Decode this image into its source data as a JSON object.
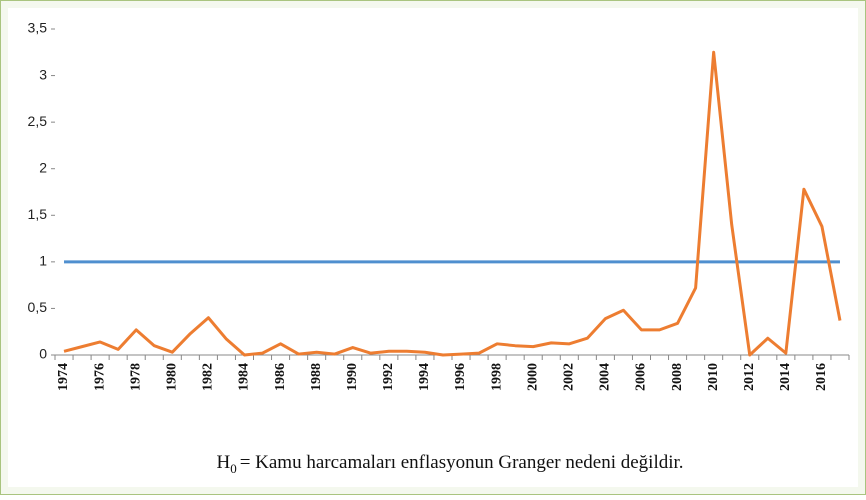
{
  "chart_data": {
    "type": "line",
    "categories": [
      "1974",
      null,
      "1976",
      null,
      "1978",
      null,
      "1980",
      null,
      "1982",
      null,
      "1984",
      null,
      "1986",
      null,
      "1988",
      null,
      "1990",
      null,
      "1992",
      null,
      "1994",
      null,
      "1996",
      null,
      "1998",
      null,
      "2000",
      null,
      "2002",
      null,
      "2004",
      null,
      "2006",
      null,
      "2008",
      null,
      "2010",
      null,
      "2012",
      null,
      "2014",
      null,
      "2016",
      null
    ],
    "series": [
      {
        "color": "#4f8fcf",
        "values": [
          1,
          1,
          1,
          1,
          1,
          1,
          1,
          1,
          1,
          1,
          1,
          1,
          1,
          1,
          1,
          1,
          1,
          1,
          1,
          1,
          1,
          1,
          1,
          1,
          1,
          1,
          1,
          1,
          1,
          1,
          1,
          1,
          1,
          1,
          1,
          1,
          1,
          1,
          1,
          1,
          1,
          1,
          1,
          1
        ]
      },
      {
        "color": "#ed7d31",
        "values": [
          0.04,
          0.09,
          0.14,
          0.06,
          0.27,
          0.1,
          0.03,
          0.23,
          0.4,
          0.17,
          0.0,
          0.02,
          0.12,
          0.01,
          0.03,
          0.01,
          0.08,
          0.02,
          0.04,
          0.04,
          0.03,
          0.0,
          0.01,
          0.02,
          0.12,
          0.1,
          0.09,
          0.13,
          0.12,
          0.18,
          0.39,
          0.48,
          0.27,
          0.27,
          0.34,
          0.72,
          3.25,
          1.4,
          0.0,
          0.18,
          0.02,
          1.78,
          1.38,
          0.37
        ]
      }
    ],
    "ylim": [
      0,
      3.5
    ],
    "yticks": [
      0,
      {
        "value": 0.5,
        "label": "0,5"
      },
      1,
      {
        "value": 1.5,
        "label": "1,5"
      },
      2,
      {
        "value": 2.5,
        "label": "2,5"
      },
      3,
      {
        "value": 3.5,
        "label": "3,5"
      }
    ],
    "caption": {
      "symbol": "H",
      "subscript": "0",
      "text": "= Kamu harcamaları enflasyonun Granger nedeni değildir."
    }
  }
}
